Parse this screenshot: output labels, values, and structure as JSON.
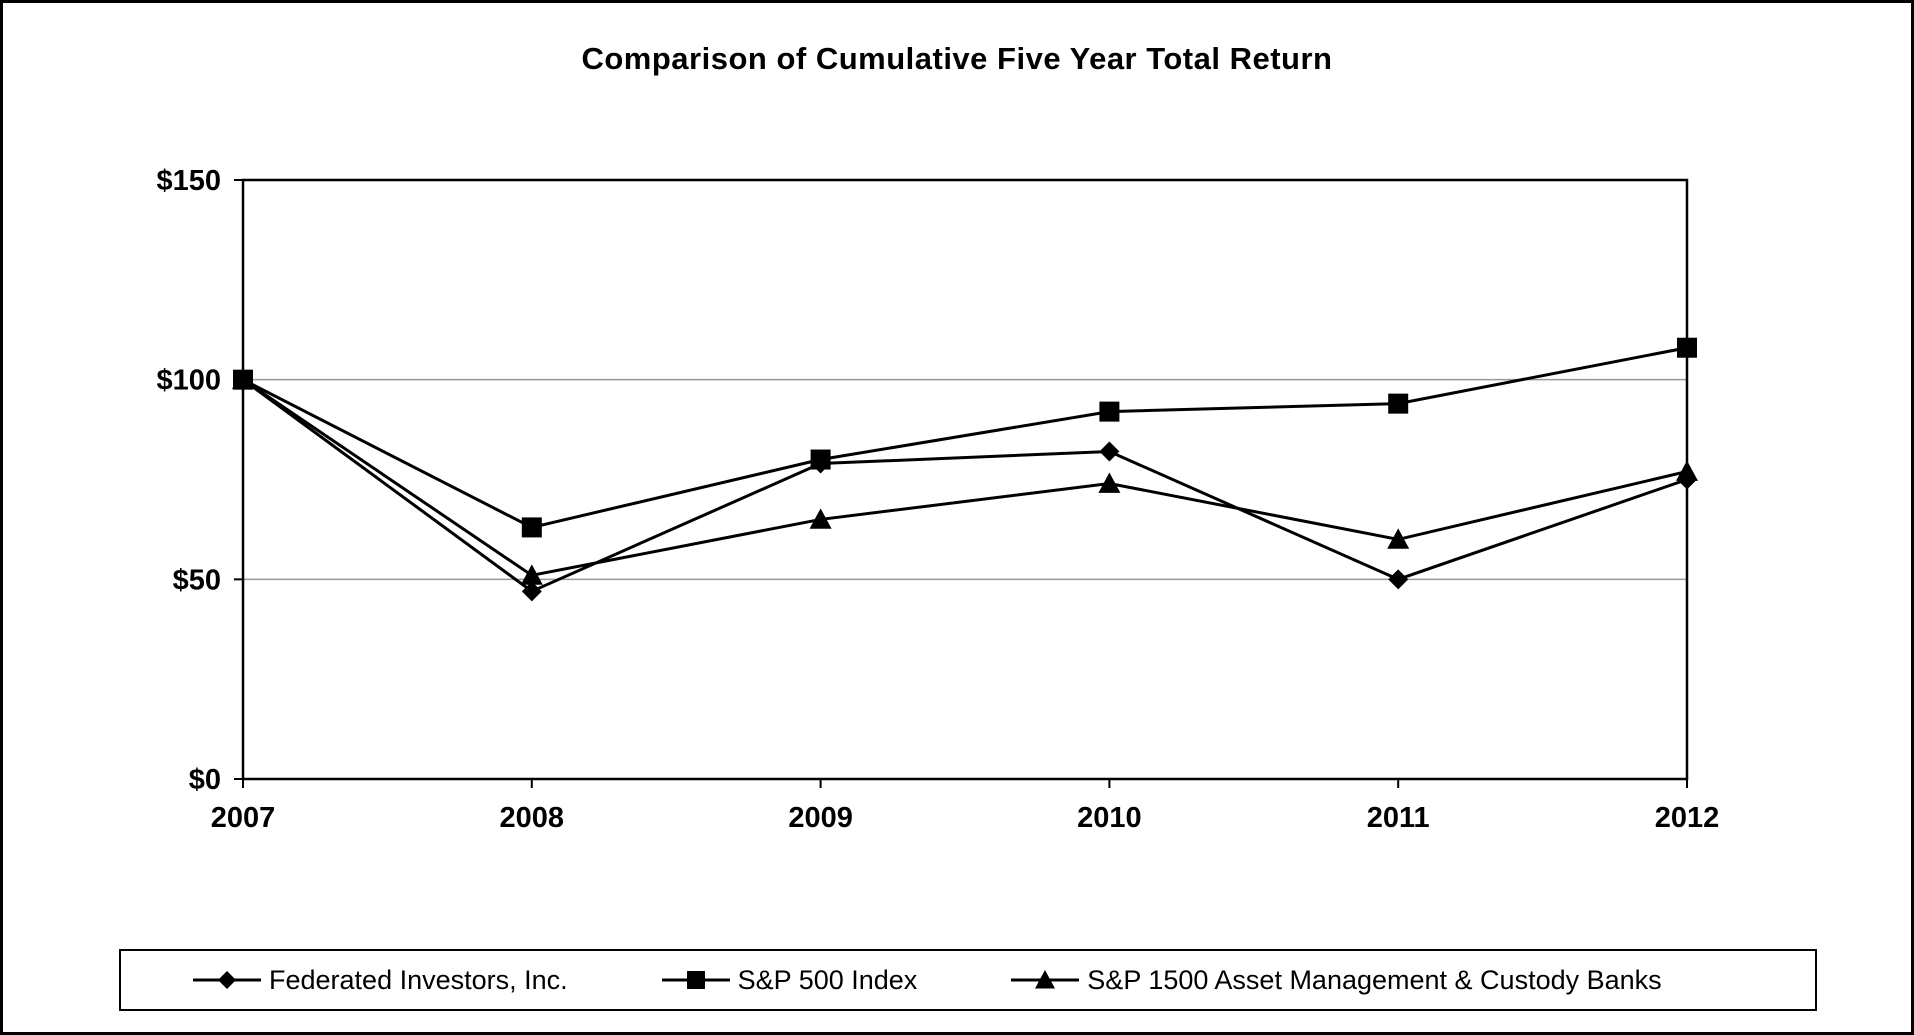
{
  "chart_data": {
    "type": "line",
    "title": "Comparison of Cumulative Five Year Total Return",
    "x": [
      2007,
      2008,
      2009,
      2010,
      2011,
      2012
    ],
    "xtick_labels": [
      "2007",
      "2008",
      "2009",
      "2010",
      "2011",
      "2012"
    ],
    "series": [
      {
        "name": "Federated Investors, Inc.",
        "marker": "diamond",
        "values": [
          100,
          47,
          79,
          82,
          50,
          75
        ]
      },
      {
        "name": "S&P 500 Index",
        "marker": "square",
        "values": [
          100,
          63,
          80,
          92,
          94,
          108
        ]
      },
      {
        "name": "S&P 1500 Asset Management & Custody Banks",
        "marker": "triangle",
        "values": [
          100,
          51,
          65,
          74,
          60,
          77
        ]
      }
    ],
    "ylim": [
      0,
      150
    ],
    "yticks": [
      0,
      50,
      100,
      150
    ],
    "ytick_labels": [
      "$0",
      "$50",
      "$100",
      "$150"
    ],
    "grid": "horizontal",
    "legend_position": "bottom",
    "line_color": "#000000",
    "grid_color": "#999999",
    "axis_color": "#000000",
    "background_color": "#ffffff"
  }
}
